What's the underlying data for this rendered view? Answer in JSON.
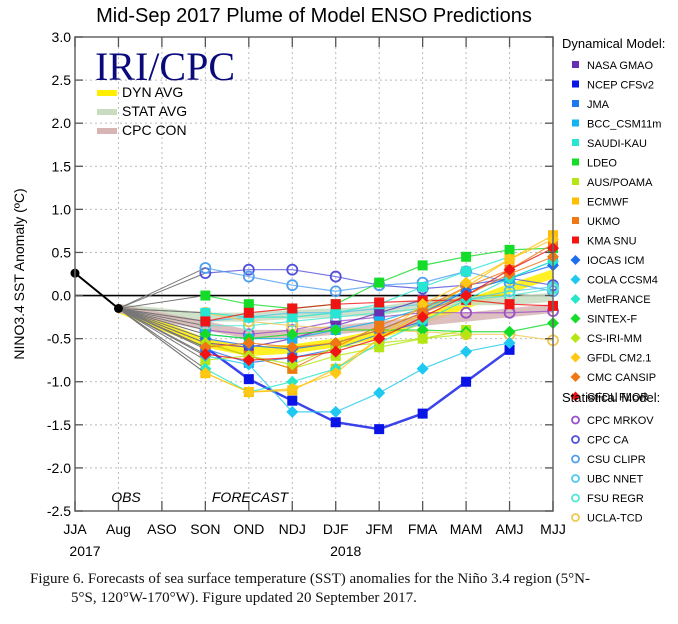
{
  "chart_data": {
    "type": "line",
    "title": "Mid-Sep 2017 Plume of Model ENSO Predictions",
    "xlabel": "",
    "ylabel": "NINO3.4 SST Anomaly (ºC)",
    "ylim": [
      -2.5,
      3.0
    ],
    "yticks": [
      "3.0",
      "2.5",
      "2.0",
      "1.5",
      "1.0",
      "0.5",
      "0.0",
      "-0.5",
      "-1.0",
      "-1.5",
      "-2.0",
      "-2.5"
    ],
    "ytick_values": [
      3.0,
      2.5,
      2.0,
      1.5,
      1.0,
      0.5,
      0.0,
      -0.5,
      -1.0,
      -1.5,
      -2.0,
      -2.5
    ],
    "categories": [
      "JJA",
      "Aug",
      "ASO",
      "SON",
      "OND",
      "NDJ",
      "DJF",
      "JFM",
      "FMA",
      "MAM",
      "AMJ",
      "MJJ"
    ],
    "year_labels": [
      {
        "label": "2017",
        "at": "JJA"
      },
      {
        "label": "2018",
        "at": "DJF"
      }
    ],
    "grid": true,
    "annotations": {
      "obs": "OBS",
      "forecast": "FORECAST",
      "logo": "IRI/CPC"
    },
    "observed": {
      "name": "OBS",
      "x": [
        "JJA",
        "Aug"
      ],
      "values": [
        0.26,
        -0.15
      ],
      "color": "#000000"
    },
    "averages": [
      {
        "name": "DYN AVG",
        "color": "#ffee00",
        "values": [
          null,
          -0.15,
          null,
          -0.55,
          -0.65,
          -0.62,
          -0.55,
          -0.45,
          -0.28,
          -0.1,
          0.08,
          0.25
        ]
      },
      {
        "name": "STAT AVG",
        "color": "#c8dcc0",
        "values": [
          null,
          -0.15,
          null,
          -0.25,
          -0.25,
          -0.22,
          -0.2,
          -0.18,
          -0.1,
          -0.06,
          -0.06,
          -0.02
        ]
      },
      {
        "name": "CPC CON",
        "color": "#d8b4b4",
        "values": [
          null,
          -0.15,
          null,
          -0.35,
          -0.45,
          -0.45,
          -0.4,
          -0.35,
          -0.3,
          -0.25,
          -0.2,
          -0.15
        ]
      }
    ],
    "legend_dynamical_title": "Dynamical Model:",
    "legend_statistical_title": "Statistical Model:",
    "legend_placement": "right",
    "dynamical_models": [
      {
        "name": "NASA GMAO",
        "marker": "square",
        "color": "#6a2fb0",
        "values": [
          -0.55,
          -0.6,
          -0.5,
          -0.35,
          -0.2,
          -0.05,
          null,
          null,
          null
        ]
      },
      {
        "name": "NCEP CFSv2",
        "marker": "square",
        "color": "#0a14e6",
        "values": [
          -0.6,
          -0.97,
          -1.22,
          -1.47,
          -1.55,
          -1.37,
          -1.0,
          -0.63,
          null
        ]
      },
      {
        "name": "JMA",
        "marker": "square",
        "color": "#1e78f0",
        "values": [
          -0.62,
          -0.78,
          -0.72,
          -0.62,
          -0.45,
          -0.3,
          null,
          null,
          null
        ]
      },
      {
        "name": "BCC_CSM11m",
        "marker": "square",
        "color": "#14b4f0",
        "values": [
          -0.45,
          -0.5,
          -0.5,
          -0.4,
          -0.3,
          -0.15,
          0.05,
          0.2,
          0.4
        ]
      },
      {
        "name": "SAUDI-KAU",
        "marker": "square",
        "color": "#28e6d2",
        "values": [
          -0.2,
          -0.25,
          -0.25,
          -0.2,
          -0.1,
          0.1,
          0.28,
          0.45,
          null
        ]
      },
      {
        "name": "LDEO",
        "marker": "square",
        "color": "#14dc28",
        "values": [
          0.0,
          -0.1,
          -0.15,
          -0.1,
          0.15,
          0.35,
          0.45,
          0.53,
          0.55
        ]
      },
      {
        "name": "AUS/POAMA",
        "marker": "square",
        "color": "#b4e614",
        "values": [
          -0.75,
          -0.7,
          -0.85,
          -0.7,
          -0.6,
          -0.5,
          -0.4,
          null,
          null
        ]
      },
      {
        "name": "ECMWF",
        "marker": "square",
        "color": "#ffbe00",
        "values": [
          -0.9,
          -1.12,
          -1.1,
          -0.85,
          -0.5,
          -0.2,
          0.1,
          0.42,
          0.7
        ]
      },
      {
        "name": "UKMO",
        "marker": "square",
        "color": "#f07814",
        "values": [
          -0.55,
          -0.7,
          -0.85,
          -0.6,
          -0.35,
          -0.15,
          0.1,
          0.3,
          0.6
        ]
      },
      {
        "name": "KMA SNU",
        "marker": "square",
        "color": "#f01414",
        "values": [
          -0.3,
          -0.2,
          -0.15,
          -0.1,
          -0.08,
          -0.06,
          -0.05,
          -0.1,
          -0.12
        ]
      }
    ],
    "dynamical_models_diamond": [
      {
        "name": "IOCAS ICM",
        "marker": "diamond",
        "color": "#1e6ef0",
        "values": [
          -0.5,
          -0.58,
          -0.62,
          -0.55,
          -0.4,
          -0.2,
          0.05,
          0.2,
          0.35
        ]
      },
      {
        "name": "COLA CCSM4",
        "marker": "diamond",
        "color": "#1ec8f0",
        "values": [
          -0.7,
          -0.8,
          -1.35,
          -1.35,
          -1.13,
          -0.85,
          -0.65,
          -0.55,
          null
        ]
      },
      {
        "name": "MetFRANCE",
        "marker": "diamond",
        "color": "#28e6c8",
        "values": [
          -0.85,
          -1.12,
          -1.0,
          -0.85,
          -0.55,
          -0.3,
          -0.05,
          0.2,
          0.4
        ]
      },
      {
        "name": "SINTEX-F",
        "marker": "diamond",
        "color": "#14dc28",
        "values": [
          -0.45,
          -0.5,
          -0.45,
          -0.4,
          -0.4,
          -0.4,
          -0.42,
          -0.42,
          -0.32
        ]
      },
      {
        "name": "CS-IRI-MM",
        "marker": "diamond",
        "color": "#b4e614",
        "values": [
          -0.55,
          -0.7,
          -0.8,
          -0.6,
          -0.55,
          -0.5,
          -0.45,
          null,
          null
        ]
      },
      {
        "name": "GFDL CM2.1",
        "marker": "diamond",
        "color": "#ffc814",
        "values": [
          -0.9,
          -1.12,
          -1.08,
          -0.9,
          -0.5,
          -0.1,
          0.15,
          0.42,
          0.65
        ]
      },
      {
        "name": "CMC CANSIP",
        "marker": "diamond",
        "color": "#f07814",
        "values": [
          -0.6,
          -0.55,
          -0.6,
          -0.55,
          -0.4,
          -0.2,
          0.0,
          0.25,
          0.45
        ]
      },
      {
        "name": "GFDL FLOR",
        "marker": "diamond",
        "color": "#f01414",
        "values": [
          -0.68,
          -0.75,
          -0.72,
          -0.65,
          -0.5,
          -0.25,
          0.0,
          0.3,
          0.55
        ]
      }
    ],
    "statistical_models": [
      {
        "name": "CPC MRKOV",
        "marker": "circle",
        "color": "#9a50c8",
        "values": [
          -0.4,
          -0.45,
          -0.4,
          -0.3,
          -0.25,
          -0.2,
          -0.2,
          -0.2,
          -0.18
        ]
      },
      {
        "name": "CPC CA",
        "marker": "circle",
        "color": "#5050dc",
        "values": [
          0.26,
          0.3,
          0.3,
          0.22,
          0.12,
          0.08,
          0.12,
          0.2,
          0.12
        ]
      },
      {
        "name": "CSU CLIPR",
        "marker": "circle",
        "color": "#50a0f0",
        "values": [
          0.32,
          0.22,
          0.12,
          0.05,
          0.12,
          0.15,
          0.28,
          0.15,
          0.05
        ]
      },
      {
        "name": "UBC NNET",
        "marker": "circle",
        "color": "#50c8f0",
        "values": [
          -0.3,
          -0.25,
          -0.2,
          -0.2,
          -0.15,
          -0.1,
          -0.05,
          0.05,
          0.1
        ]
      },
      {
        "name": "FSU REGR",
        "marker": "circle",
        "color": "#50e6d2",
        "values": [
          -0.35,
          -0.35,
          -0.3,
          -0.25,
          -0.2,
          -0.15,
          -0.05,
          0.0,
          0.08
        ]
      },
      {
        "name": "UCLA-TCD",
        "marker": "circle",
        "color": "#f0c850",
        "values": [
          -0.2,
          -0.3,
          -0.35,
          -0.38,
          -0.4,
          -0.42,
          -0.45,
          -0.45,
          -0.52
        ]
      }
    ],
    "forecast_x": [
      "SON",
      "OND",
      "NDJ",
      "DJF",
      "JFM",
      "FMA",
      "MAM",
      "AMJ",
      "MJJ"
    ]
  },
  "caption": {
    "line1": "Figure 6. Forecasts of sea surface temperature (SST) anomalies for the Niño 3.4 region (5°N-",
    "line2": "5°S, 120°W-170°W). Figure updated 20 September 2017."
  }
}
